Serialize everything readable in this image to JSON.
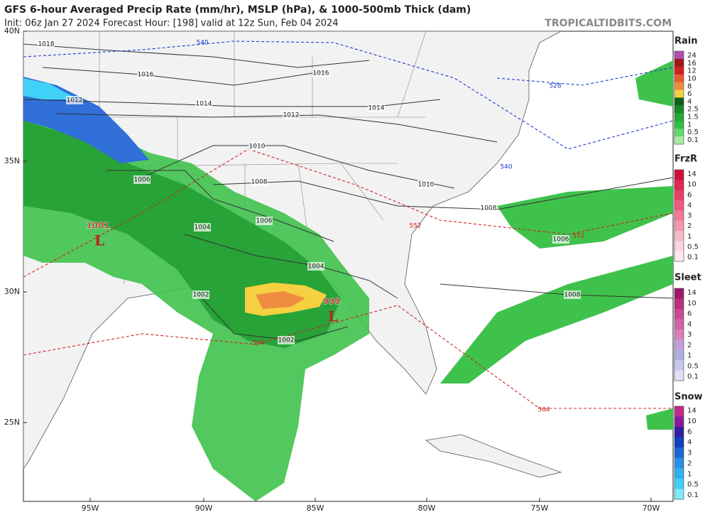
{
  "header": {
    "title": "GFS 6-hour Averaged Precip Rate (mm/hr), MSLP (hPa), & 1000-500mb Thick (dam)",
    "subtitle": "Init: 06z Jan 27 2024   Forecast Hour: [198]   valid at 12z Sun, Feb 04 2024",
    "site": "TROPICALTIDBITS.COM"
  },
  "axes": {
    "lat_labels": [
      "40N",
      "35N",
      "30N",
      "25N"
    ],
    "lon_labels": [
      "95W",
      "90W",
      "85W",
      "80W",
      "75W",
      "70W"
    ]
  },
  "contours": {
    "isobars": [
      1018,
      1016,
      1016,
      1014,
      1014,
      1012,
      1012,
      1010,
      1010,
      1008,
      1008,
      1008,
      1006,
      1006,
      1006,
      1004,
      1004,
      1002,
      1002
    ],
    "thickness": [
      540,
      540,
      528,
      552,
      552,
      564,
      564
    ]
  },
  "lows": [
    {
      "pressure": 1001,
      "symbol": "L"
    },
    {
      "pressure": 999,
      "symbol": "L"
    }
  ],
  "legends": [
    {
      "title": "Rain",
      "ticks": [
        24,
        16,
        12,
        10,
        8,
        6,
        4,
        2.5,
        1.5,
        1,
        0.5,
        0.1
      ],
      "colors": [
        "#b04fb0",
        "#a01818",
        "#d02020",
        "#e85a30",
        "#f08c40",
        "#f5d040",
        "#0e5e1a",
        "#188a28",
        "#22a834",
        "#30c040",
        "#60d86a",
        "#a8eca8"
      ]
    },
    {
      "title": "FrzR",
      "ticks": [
        14,
        10,
        6,
        4,
        3,
        2,
        1,
        0.5,
        0.1
      ],
      "colors": [
        "#d0103a",
        "#e02850",
        "#e84068",
        "#f05a80",
        "#f07a98",
        "#f498b0",
        "#f8b8c8",
        "#fcd4de",
        "#fde8ee"
      ]
    },
    {
      "title": "Sleet",
      "ticks": [
        14,
        10,
        6,
        4,
        3,
        2,
        1,
        0.5,
        0.1
      ],
      "colors": [
        "#a0186a",
        "#b8307e",
        "#c84a90",
        "#d064a4",
        "#d880b8",
        "#c0a0d8",
        "#b0b0e0",
        "#c8c8ec",
        "#e0e0f6"
      ]
    },
    {
      "title": "Snow",
      "ticks": [
        14,
        10,
        6,
        4,
        3,
        2,
        1,
        0.5,
        0.1
      ],
      "colors": [
        "#c02a8a",
        "#8a1a9a",
        "#3020a0",
        "#1040c0",
        "#1868d8",
        "#2890e8",
        "#30b0f0",
        "#40d0f8",
        "#80eafc"
      ]
    }
  ]
}
